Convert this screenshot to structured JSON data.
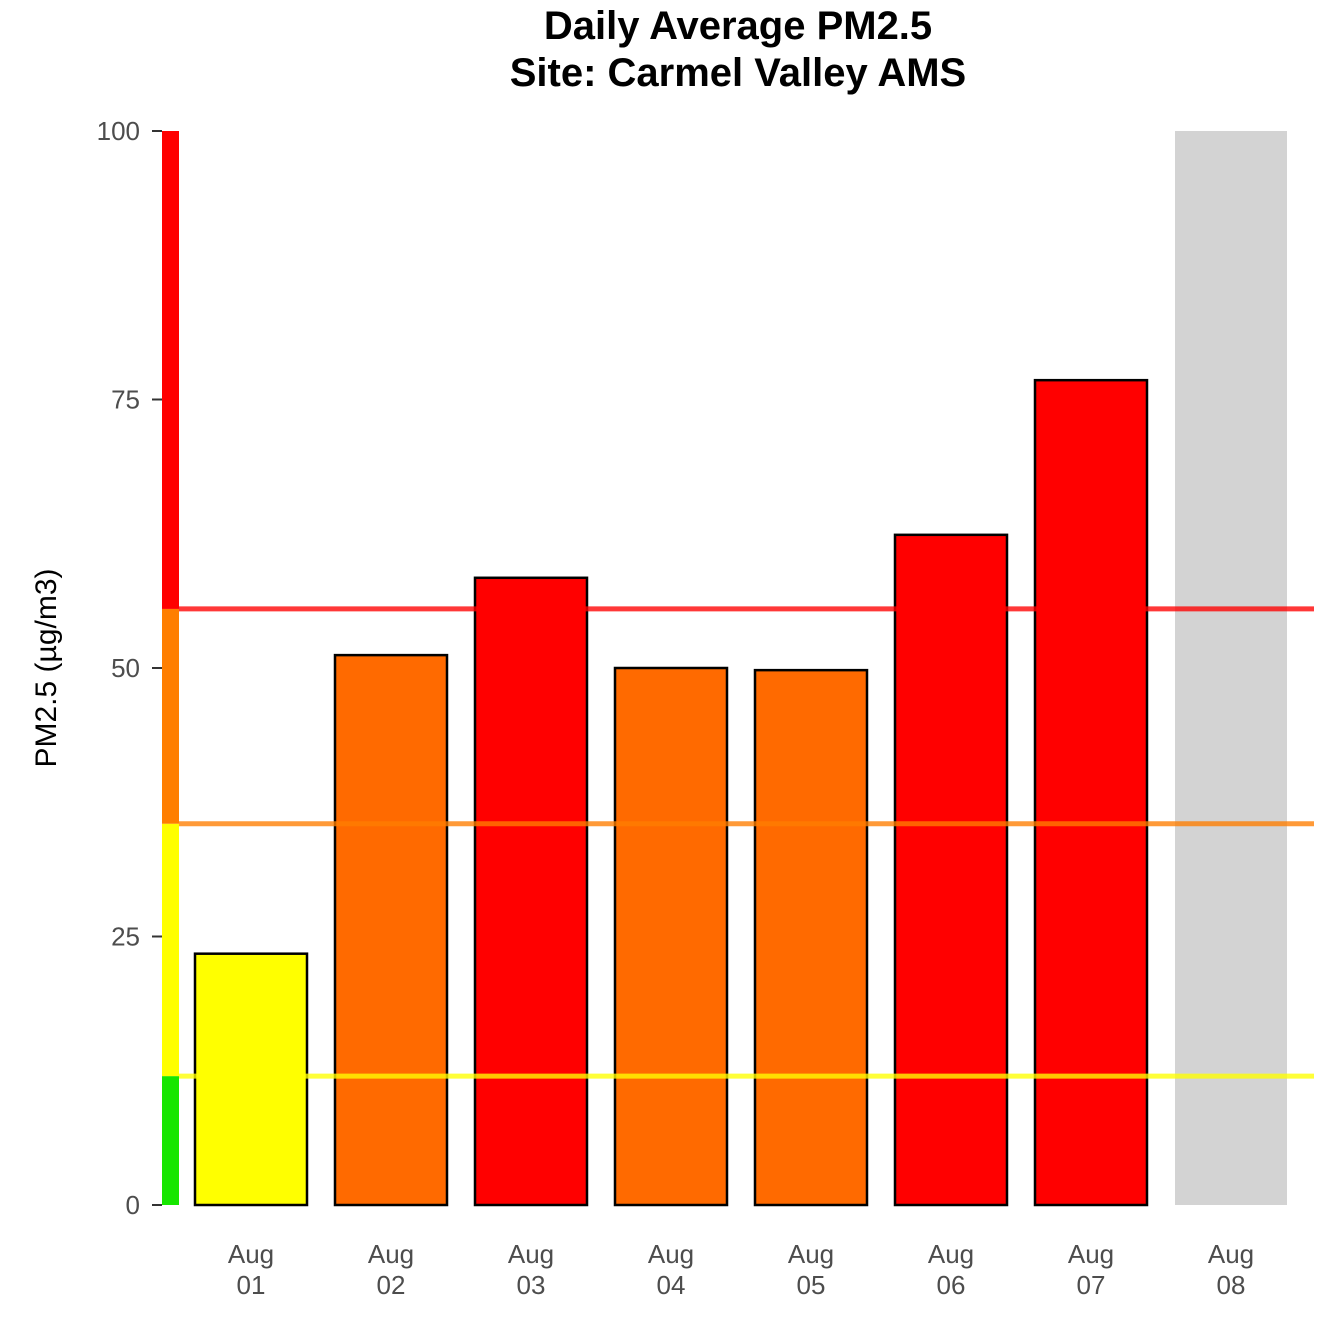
{
  "chart_data": {
    "type": "bar",
    "title": "Daily Average PM2.5",
    "subtitle": "Site: Carmel Valley AMS",
    "xlabel": "",
    "ylabel": "PM2.5 (µg/m3)",
    "ylim": [
      0,
      100
    ],
    "yticks": [
      0,
      25,
      50,
      75,
      100
    ],
    "categories": [
      {
        "month": "Aug",
        "day": "01"
      },
      {
        "month": "Aug",
        "day": "02"
      },
      {
        "month": "Aug",
        "day": "03"
      },
      {
        "month": "Aug",
        "day": "04"
      },
      {
        "month": "Aug",
        "day": "05"
      },
      {
        "month": "Aug",
        "day": "06"
      },
      {
        "month": "Aug",
        "day": "07"
      },
      {
        "month": "Aug",
        "day": "08"
      }
    ],
    "values": [
      23.4,
      51.2,
      58.4,
      50.0,
      49.8,
      62.4,
      76.8,
      null
    ],
    "bar_colors": [
      "#ffff00",
      "#ff6a00",
      "#ff0000",
      "#ff6a00",
      "#ff6a00",
      "#ff0000",
      "#ff0000",
      null
    ],
    "missing_day_shade": "#d3d3d3",
    "aqi_bands": [
      {
        "from": 0,
        "to": 12,
        "color": "#16e600"
      },
      {
        "from": 12,
        "to": 35.5,
        "color": "#ffff00"
      },
      {
        "from": 35.5,
        "to": 55.5,
        "color": "#ff7e00"
      },
      {
        "from": 55.5,
        "to": 100,
        "color": "#ff0000"
      }
    ],
    "threshold_lines": [
      {
        "value": 12,
        "color": "#ffff00"
      },
      {
        "value": 35.5,
        "color": "#ff7e00"
      },
      {
        "value": 55.5,
        "color": "#ff0000"
      }
    ],
    "grid": false,
    "legend": "none"
  }
}
